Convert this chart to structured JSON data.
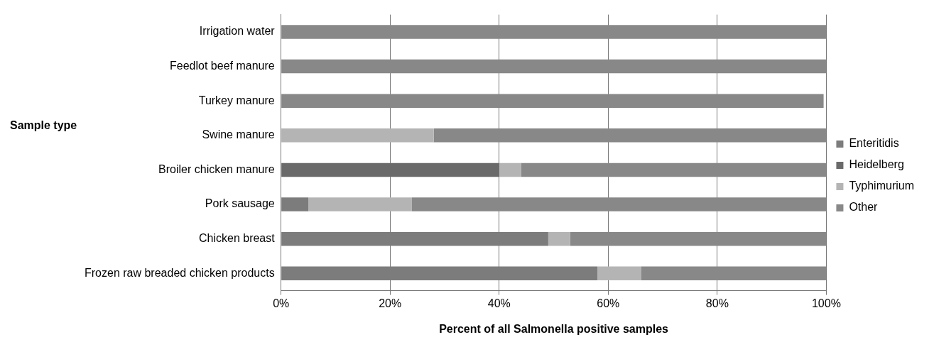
{
  "chart_data": {
    "type": "bar",
    "orientation": "horizontal",
    "stacked": true,
    "xlabel": "Percent of all Salmonella positive samples",
    "ylabel": "Sample type",
    "categories": [
      "Irrigation water",
      "Feedlot beef manure",
      "Turkey manure",
      "Swine manure",
      "Broiler chicken manure",
      "Pork sausage",
      "Chicken breast",
      "Frozen raw breaded chicken products"
    ],
    "series": [
      {
        "name": "Enteritidis",
        "color": "#7c7c7c",
        "values": [
          0,
          0,
          0,
          0,
          0,
          5,
          49,
          58
        ]
      },
      {
        "name": "Heidelberg",
        "color": "#6a6a6a",
        "values": [
          0,
          0,
          0,
          0,
          40,
          0,
          0,
          0
        ]
      },
      {
        "name": "Typhimurium",
        "color": "#b4b4b4",
        "values": [
          0,
          0,
          0,
          28,
          4,
          19,
          4,
          8
        ]
      },
      {
        "name": "Other",
        "color": "#888888",
        "values": [
          100,
          100,
          99.5,
          72,
          56,
          76,
          47,
          34
        ]
      }
    ],
    "xlim": [
      0,
      100
    ],
    "xticks": [
      {
        "value": 0,
        "label": "0%"
      },
      {
        "value": 20,
        "label": "20%"
      },
      {
        "value": 40,
        "label": "40%"
      },
      {
        "value": 60,
        "label": "60%"
      },
      {
        "value": 80,
        "label": "80%"
      },
      {
        "value": 100,
        "label": "100%"
      }
    ],
    "grid": "x",
    "legend": "right"
  }
}
